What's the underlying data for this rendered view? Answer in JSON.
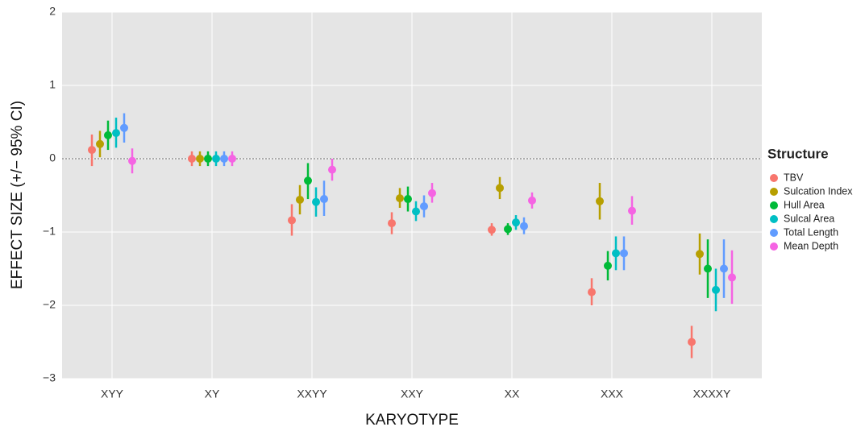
{
  "chart_data": {
    "type": "pointrange",
    "x_label": "KARYOTYPE",
    "y_label": "EFFECT SIZE (+/− 95% CI)",
    "legend_title": "Structure",
    "legend_position": "right",
    "grid": true,
    "hline": 0,
    "categories": [
      "XYY",
      "XY",
      "XXYY",
      "XXY",
      "XX",
      "XXX",
      "XXXXY"
    ],
    "ylim": [
      -3,
      2
    ],
    "yticks": [
      {
        "value": -3,
        "label": "−3"
      },
      {
        "value": -2,
        "label": "−2"
      },
      {
        "value": -1,
        "label": "−1"
      },
      0,
      1,
      2
    ],
    "series": [
      {
        "name": "TBV",
        "color": "#F8766D",
        "values": [
          0.12,
          0,
          -0.84,
          -0.88,
          -0.97,
          -1.82,
          -2.5
        ],
        "lower": [
          -0.1,
          -0.1,
          -1.05,
          -1.03,
          -1.05,
          -2.0,
          -2.72
        ],
        "upper": [
          0.33,
          0.1,
          -0.62,
          -0.73,
          -0.88,
          -1.63,
          -2.28
        ]
      },
      {
        "name": "Sulcation Index",
        "color": "#B79F00",
        "values": [
          0.2,
          0,
          -0.56,
          -0.54,
          -0.4,
          -0.58,
          -1.3
        ],
        "lower": [
          0.02,
          -0.1,
          -0.76,
          -0.67,
          -0.55,
          -0.83,
          -1.58
        ],
        "upper": [
          0.38,
          0.1,
          -0.36,
          -0.4,
          -0.25,
          -0.33,
          -1.02
        ]
      },
      {
        "name": "Hull Area",
        "color": "#00BA38",
        "values": [
          0.32,
          0,
          -0.3,
          -0.55,
          -0.96,
          -1.46,
          -1.5
        ],
        "lower": [
          0.12,
          -0.1,
          -0.55,
          -0.72,
          -1.04,
          -1.66,
          -1.9
        ],
        "upper": [
          0.52,
          0.1,
          -0.06,
          -0.38,
          -0.88,
          -1.26,
          -1.1
        ]
      },
      {
        "name": "Sulcal Area",
        "color": "#00BFC4",
        "values": [
          0.35,
          0,
          -0.59,
          -0.72,
          -0.87,
          -1.29,
          -1.79
        ],
        "lower": [
          0.15,
          -0.1,
          -0.79,
          -0.85,
          -0.97,
          -1.52,
          -2.08
        ],
        "upper": [
          0.56,
          0.1,
          -0.39,
          -0.58,
          -0.77,
          -1.06,
          -1.5
        ]
      },
      {
        "name": "Total Length",
        "color": "#619CFF",
        "values": [
          0.42,
          0,
          -0.55,
          -0.65,
          -0.92,
          -1.29,
          -1.5
        ],
        "lower": [
          0.22,
          -0.1,
          -0.78,
          -0.8,
          -1.03,
          -1.52,
          -1.9
        ],
        "upper": [
          0.62,
          0.1,
          -0.3,
          -0.5,
          -0.8,
          -1.06,
          -1.1
        ]
      },
      {
        "name": "Mean Depth",
        "color": "#F564E3",
        "values": [
          -0.03,
          0,
          -0.15,
          -0.47,
          -0.57,
          -0.71,
          -1.62
        ],
        "lower": [
          -0.2,
          -0.1,
          -0.3,
          -0.6,
          -0.68,
          -0.9,
          -1.98
        ],
        "upper": [
          0.14,
          0.1,
          0,
          -0.33,
          -0.46,
          -0.51,
          -1.25
        ]
      }
    ]
  }
}
